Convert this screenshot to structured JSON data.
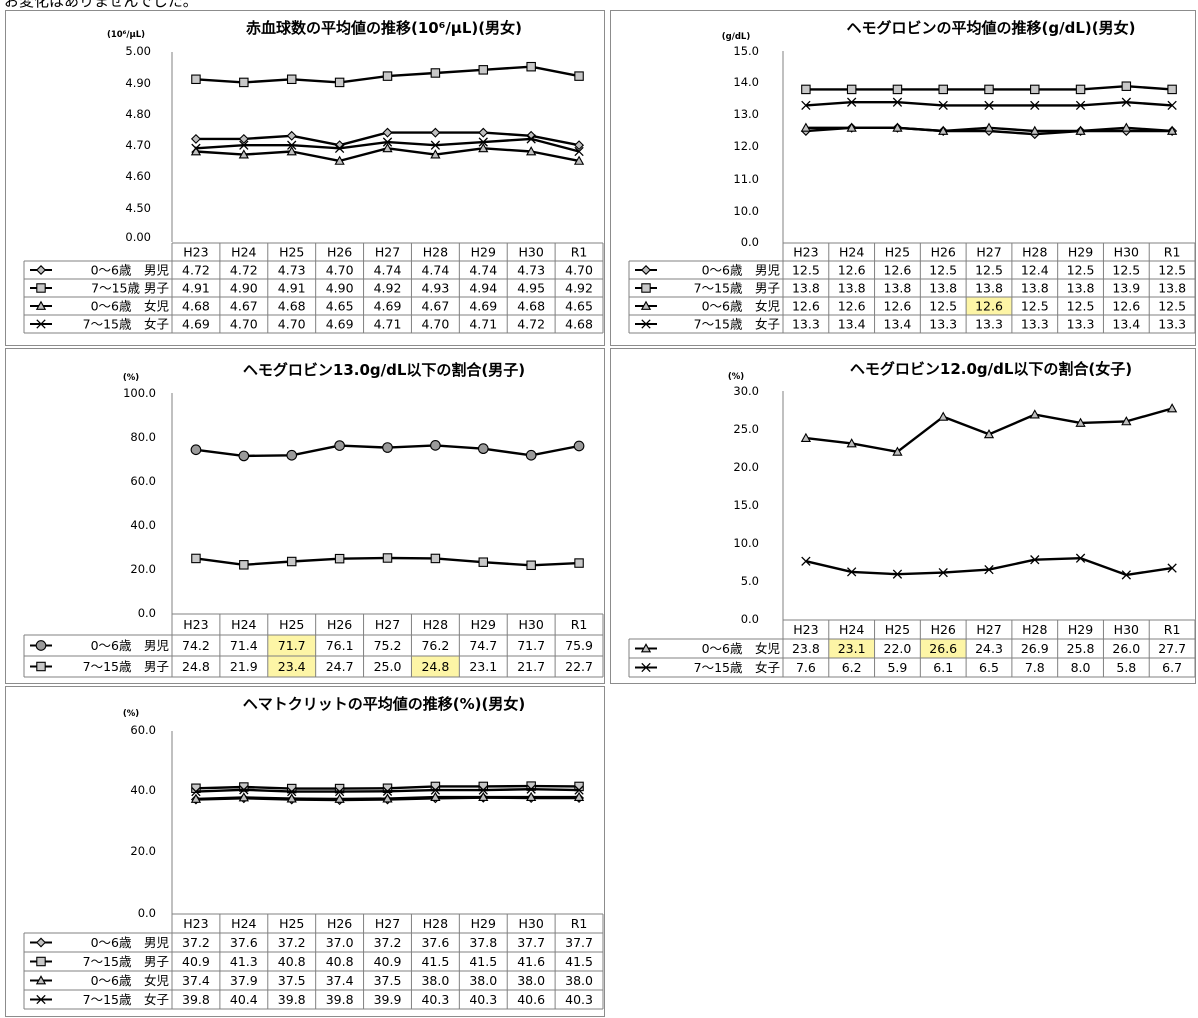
{
  "header_text": "お変化はありませんでした。",
  "chart_data": [
    {
      "type": "line",
      "title": "赤血球数の平均値の推移(10⁶/μL)(男女)",
      "ylabel": "(10⁶/μL)",
      "y_tick_labels": [
        "0.00",
        "4.50",
        "4.60",
        "4.70",
        "4.80",
        "4.90",
        "5.00"
      ],
      "y_break": true,
      "ylim": [
        4.45,
        5.0
      ],
      "categories": [
        "H23",
        "H24",
        "H25",
        "H26",
        "H27",
        "H28",
        "H29",
        "H30",
        "R1"
      ],
      "grid": false,
      "series": [
        {
          "name": "0～6歳　男児",
          "marker": "diamond",
          "values": [
            4.72,
            4.72,
            4.73,
            4.7,
            4.74,
            4.74,
            4.74,
            4.73,
            4.7
          ]
        },
        {
          "name": "7～15歳 男子",
          "marker": "square",
          "values": [
            4.91,
            4.9,
            4.91,
            4.9,
            4.92,
            4.93,
            4.94,
            4.95,
            4.92
          ]
        },
        {
          "name": "0～6歳　女児",
          "marker": "triangle",
          "values": [
            4.68,
            4.67,
            4.68,
            4.65,
            4.69,
            4.67,
            4.69,
            4.68,
            4.65
          ]
        },
        {
          "name": "7～15歳　女子",
          "marker": "x",
          "values": [
            4.69,
            4.7,
            4.7,
            4.69,
            4.71,
            4.7,
            4.71,
            4.72,
            4.68
          ]
        }
      ],
      "highlights": []
    },
    {
      "type": "line",
      "title": "ヘモグロビンの平均値の推移(g/dL)(男女)",
      "ylabel": "(g/dL)",
      "y_tick_labels": [
        "0.0",
        "10.0",
        "11.0",
        "12.0",
        "13.0",
        "14.0",
        "15.0"
      ],
      "y_break": true,
      "ylim": [
        9.5,
        15.0
      ],
      "categories": [
        "H23",
        "H24",
        "H25",
        "H26",
        "H27",
        "H28",
        "H29",
        "H30",
        "R1"
      ],
      "grid": false,
      "series": [
        {
          "name": "0～6歳　男児",
          "marker": "diamond",
          "values": [
            12.5,
            12.6,
            12.6,
            12.5,
            12.5,
            12.4,
            12.5,
            12.5,
            12.5
          ]
        },
        {
          "name": "7～15歳　男子",
          "marker": "square",
          "values": [
            13.8,
            13.8,
            13.8,
            13.8,
            13.8,
            13.8,
            13.8,
            13.9,
            13.8
          ]
        },
        {
          "name": "0～6歳　女児",
          "marker": "triangle",
          "values": [
            12.6,
            12.6,
            12.6,
            12.5,
            12.6,
            12.5,
            12.5,
            12.6,
            12.5
          ]
        },
        {
          "name": "7～15歳　女子",
          "marker": "x",
          "values": [
            13.3,
            13.4,
            13.4,
            13.3,
            13.3,
            13.3,
            13.3,
            13.4,
            13.3
          ]
        }
      ],
      "highlights": [
        [
          2,
          4
        ]
      ]
    },
    {
      "type": "line",
      "title": "ヘモグロビン13.0g/dL以下の割合(男子)",
      "ylabel": "(%)",
      "y_tick_labels": [
        "0.0",
        "20.0",
        "40.0",
        "60.0",
        "80.0",
        "100.0"
      ],
      "y_break": false,
      "ylim": [
        0,
        100
      ],
      "categories": [
        "H23",
        "H24",
        "H25",
        "H26",
        "H27",
        "H28",
        "H29",
        "H30",
        "R1"
      ],
      "grid": false,
      "series": [
        {
          "name": "0～6歳　男児",
          "marker": "circle",
          "values": [
            74.2,
            71.4,
            71.7,
            76.1,
            75.2,
            76.2,
            74.7,
            71.7,
            75.9
          ]
        },
        {
          "name": "7～15歳　男子",
          "marker": "square",
          "values": [
            24.8,
            21.9,
            23.4,
            24.7,
            25.0,
            24.8,
            23.1,
            21.7,
            22.7
          ]
        }
      ],
      "highlights": [
        [
          0,
          2
        ],
        [
          1,
          2
        ],
        [
          1,
          5
        ]
      ]
    },
    {
      "type": "line",
      "title": "ヘモグロビン12.0g/dL以下の割合(女子)",
      "ylabel": "(%)",
      "y_tick_labels": [
        "0.0",
        "5.0",
        "10.0",
        "15.0",
        "20.0",
        "25.0",
        "30.0"
      ],
      "y_break": false,
      "ylim": [
        0,
        30
      ],
      "categories": [
        "H23",
        "H24",
        "H25",
        "H26",
        "H27",
        "H28",
        "H29",
        "H30",
        "R1"
      ],
      "grid": false,
      "series": [
        {
          "name": "0～6歳　女児",
          "marker": "triangle",
          "values": [
            23.8,
            23.1,
            22.0,
            26.6,
            24.3,
            26.9,
            25.8,
            26.0,
            27.7
          ]
        },
        {
          "name": "7～15歳　女子",
          "marker": "x",
          "values": [
            7.6,
            6.2,
            5.9,
            6.1,
            6.5,
            7.8,
            8.0,
            5.8,
            6.7
          ]
        }
      ],
      "highlights": [
        [
          0,
          1
        ],
        [
          0,
          3
        ]
      ]
    },
    {
      "type": "line",
      "title": "ヘマトクリットの平均値の推移(%)(男女)",
      "ylabel": "(%)",
      "y_tick_labels": [
        "0.0",
        "20.0",
        "40.0",
        "60.0"
      ],
      "y_break": false,
      "ylim": [
        0,
        60
      ],
      "categories": [
        "H23",
        "H24",
        "H25",
        "H26",
        "H27",
        "H28",
        "H29",
        "H30",
        "R1"
      ],
      "grid": false,
      "series": [
        {
          "name": "0～6歳　男児",
          "marker": "diamond",
          "values": [
            37.2,
            37.6,
            37.2,
            37.0,
            37.2,
            37.6,
            37.8,
            37.7,
            37.7
          ]
        },
        {
          "name": "7～15歳　男子",
          "marker": "square",
          "values": [
            40.9,
            41.3,
            40.8,
            40.8,
            40.9,
            41.5,
            41.5,
            41.6,
            41.5
          ]
        },
        {
          "name": "0～6歳　女児",
          "marker": "triangle",
          "values": [
            37.4,
            37.9,
            37.5,
            37.4,
            37.5,
            38.0,
            38.0,
            38.0,
            38.0
          ]
        },
        {
          "name": "7～15歳　女子",
          "marker": "x",
          "values": [
            39.8,
            40.4,
            39.8,
            39.8,
            39.9,
            40.3,
            40.3,
            40.6,
            40.3
          ]
        }
      ],
      "highlights": []
    }
  ]
}
